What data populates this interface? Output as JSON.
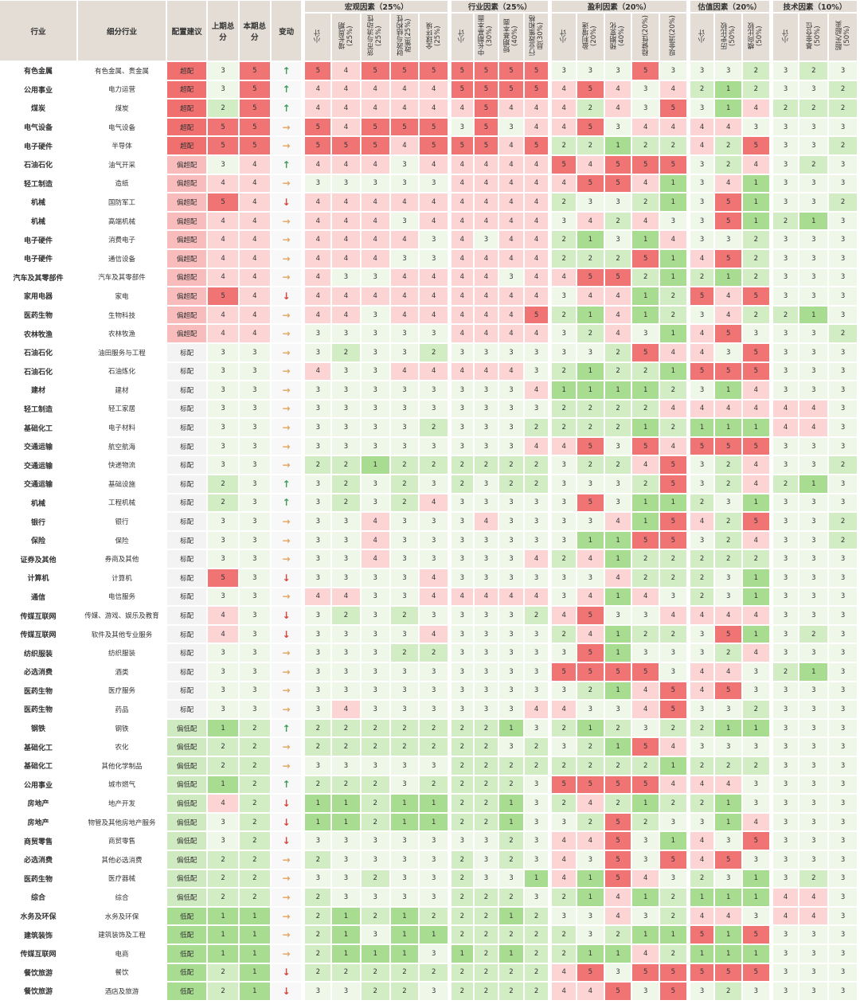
{
  "header": {
    "fixed": [
      "行业",
      "细分行业",
      "配置建议",
      "上期总分",
      "本期总分",
      "变动"
    ],
    "groups": [
      {
        "title": "宏观因素（25%）",
        "columns": [
          "小计",
          "增长周期(25%)",
          "货币与流动性(25%)",
          "财政与结构性政策(25%)",
          "全球环境(25%)"
        ]
      },
      {
        "title": "行业因素（25%）",
        "columns": [
          "小计",
          "中长期基本面(30%)",
          "短期基本面(40%)",
          "行业政策和格局(30%)"
        ]
      },
      {
        "title": "盈利因素（20%）",
        "columns": [
          "小计",
          "盈利增速(20%)",
          "预期变化(40%)",
          "稳健性(20%)",
          "现金流(20%)"
        ]
      },
      {
        "title": "估值因素（20%）",
        "columns": [
          "小计",
          "历史比较(50%)",
          "横向比较(50%)"
        ]
      },
      {
        "title": "技术因素（10%）",
        "columns": [
          "小计",
          "基金仓位(50%)",
          "超买/超卖(50%)"
        ]
      }
    ]
  },
  "rows": [
    [
      "有色金属",
      "有色金属、贵金属",
      "超配",
      3,
      5,
      "↑",
      5,
      4,
      5,
      5,
      5,
      5,
      5,
      5,
      5,
      3,
      3,
      3,
      5,
      3,
      3,
      3,
      2,
      3,
      2,
      3
    ],
    [
      "公用事业",
      "电力运营",
      "超配",
      3,
      5,
      "↑",
      4,
      4,
      4,
      4,
      4,
      5,
      5,
      5,
      5,
      4,
      5,
      4,
      3,
      4,
      2,
      1,
      2,
      3,
      3,
      2
    ],
    [
      "煤炭",
      "煤炭",
      "超配",
      2,
      5,
      "↑",
      4,
      4,
      4,
      4,
      4,
      4,
      5,
      4,
      4,
      4,
      2,
      4,
      3,
      5,
      3,
      1,
      4,
      2,
      2,
      2
    ],
    [
      "电气设备",
      "电气设备",
      "超配",
      5,
      5,
      "→",
      5,
      4,
      5,
      5,
      5,
      3,
      5,
      3,
      4,
      4,
      5,
      3,
      4,
      4,
      4,
      4,
      3,
      3,
      3,
      3
    ],
    [
      "电子硬件",
      "半导体",
      "超配",
      5,
      5,
      "→",
      5,
      5,
      5,
      4,
      5,
      5,
      5,
      4,
      5,
      2,
      2,
      1,
      2,
      2,
      4,
      2,
      5,
      3,
      3,
      2
    ],
    [
      "石油石化",
      "油气开采",
      "偏超配",
      3,
      4,
      "↑",
      4,
      4,
      4,
      3,
      4,
      4,
      4,
      4,
      4,
      5,
      4,
      5,
      5,
      5,
      3,
      2,
      4,
      3,
      2,
      3
    ],
    [
      "轻工制造",
      "造纸",
      "偏超配",
      4,
      4,
      "→",
      3,
      3,
      3,
      3,
      3,
      4,
      4,
      4,
      4,
      4,
      5,
      5,
      4,
      1,
      3,
      4,
      1,
      3,
      3,
      3
    ],
    [
      "机械",
      "国防军工",
      "偏超配",
      5,
      4,
      "↓",
      4,
      4,
      4,
      4,
      4,
      4,
      4,
      4,
      4,
      2,
      3,
      3,
      2,
      1,
      3,
      5,
      1,
      3,
      3,
      2
    ],
    [
      "机械",
      "高端机械",
      "偏超配",
      4,
      4,
      "→",
      4,
      4,
      4,
      3,
      4,
      4,
      4,
      4,
      4,
      3,
      4,
      2,
      4,
      3,
      3,
      5,
      1,
      2,
      1,
      3
    ],
    [
      "电子硬件",
      "消费电子",
      "偏超配",
      4,
      4,
      "→",
      4,
      4,
      4,
      4,
      3,
      4,
      3,
      4,
      4,
      2,
      1,
      3,
      1,
      4,
      3,
      3,
      2,
      3,
      3,
      3
    ],
    [
      "电子硬件",
      "通信设备",
      "偏超配",
      4,
      4,
      "→",
      4,
      4,
      4,
      3,
      3,
      4,
      4,
      4,
      4,
      2,
      2,
      2,
      5,
      1,
      4,
      5,
      2,
      3,
      3,
      3
    ],
    [
      "汽车及其零部件",
      "汽车及其零部件",
      "偏超配",
      4,
      4,
      "→",
      4,
      3,
      3,
      4,
      4,
      4,
      4,
      3,
      4,
      4,
      5,
      5,
      2,
      1,
      2,
      1,
      2,
      3,
      3,
      3
    ],
    [
      "家用电器",
      "家电",
      "偏超配",
      5,
      4,
      "↓",
      4,
      4,
      4,
      4,
      4,
      4,
      4,
      4,
      4,
      3,
      4,
      4,
      1,
      2,
      5,
      4,
      5,
      3,
      3,
      3
    ],
    [
      "医药生物",
      "生物科技",
      "偏超配",
      4,
      4,
      "→",
      4,
      4,
      3,
      4,
      4,
      4,
      4,
      4,
      5,
      2,
      1,
      4,
      1,
      2,
      3,
      4,
      2,
      2,
      1,
      3
    ],
    [
      "农林牧渔",
      "农林牧渔",
      "偏超配",
      4,
      4,
      "→",
      3,
      3,
      3,
      3,
      3,
      4,
      4,
      4,
      4,
      3,
      2,
      4,
      3,
      1,
      4,
      5,
      3,
      3,
      3,
      2
    ],
    [
      "石油石化",
      "油田服务与工程",
      "标配",
      3,
      3,
      "→",
      3,
      2,
      3,
      3,
      2,
      3,
      3,
      3,
      3,
      3,
      3,
      2,
      5,
      4,
      4,
      3,
      5,
      3,
      3,
      3
    ],
    [
      "石油石化",
      "石油炼化",
      "标配",
      3,
      3,
      "→",
      4,
      3,
      3,
      4,
      4,
      4,
      4,
      4,
      3,
      2,
      1,
      2,
      2,
      1,
      5,
      5,
      5,
      3,
      3,
      3
    ],
    [
      "建材",
      "建材",
      "标配",
      3,
      3,
      "→",
      3,
      3,
      3,
      3,
      3,
      3,
      3,
      3,
      4,
      1,
      1,
      1,
      1,
      2,
      3,
      1,
      4,
      3,
      3,
      3
    ],
    [
      "轻工制造",
      "轻工家居",
      "标配",
      3,
      3,
      "→",
      3,
      3,
      3,
      3,
      3,
      3,
      3,
      3,
      3,
      2,
      2,
      2,
      2,
      4,
      4,
      4,
      4,
      4,
      4,
      3
    ],
    [
      "基础化工",
      "电子材料",
      "标配",
      3,
      3,
      "→",
      3,
      3,
      3,
      3,
      2,
      3,
      3,
      3,
      2,
      2,
      2,
      2,
      1,
      2,
      1,
      1,
      1,
      4,
      4,
      3
    ],
    [
      "交通运输",
      "航空航海",
      "标配",
      3,
      3,
      "→",
      3,
      3,
      3,
      3,
      3,
      3,
      3,
      3,
      4,
      4,
      5,
      3,
      5,
      4,
      5,
      5,
      5,
      3,
      3,
      3
    ],
    [
      "交通运输",
      "快递物流",
      "标配",
      3,
      3,
      "→",
      2,
      2,
      1,
      2,
      2,
      2,
      2,
      2,
      2,
      3,
      2,
      2,
      4,
      5,
      3,
      2,
      4,
      3,
      3,
      2
    ],
    [
      "交通运输",
      "基础设施",
      "标配",
      2,
      3,
      "↑",
      3,
      2,
      3,
      2,
      3,
      2,
      3,
      2,
      2,
      3,
      3,
      3,
      2,
      5,
      3,
      2,
      4,
      2,
      1,
      3
    ],
    [
      "机械",
      "工程机械",
      "标配",
      2,
      3,
      "↑",
      3,
      2,
      3,
      2,
      4,
      3,
      3,
      3,
      3,
      3,
      5,
      3,
      1,
      1,
      2,
      3,
      1,
      3,
      3,
      3
    ],
    [
      "银行",
      "银行",
      "标配",
      3,
      3,
      "→",
      3,
      3,
      4,
      3,
      3,
      3,
      4,
      3,
      3,
      3,
      3,
      4,
      1,
      5,
      4,
      2,
      5,
      3,
      3,
      2
    ],
    [
      "保险",
      "保险",
      "标配",
      3,
      3,
      "→",
      3,
      3,
      4,
      3,
      3,
      3,
      3,
      3,
      3,
      3,
      1,
      1,
      5,
      5,
      3,
      2,
      4,
      3,
      3,
      2
    ],
    [
      "证券及其他",
      "券商及其他",
      "标配",
      3,
      3,
      "→",
      3,
      3,
      4,
      3,
      3,
      3,
      3,
      3,
      4,
      2,
      4,
      1,
      2,
      2,
      2,
      2,
      2,
      3,
      3,
      3
    ],
    [
      "计算机",
      "计算机",
      "标配",
      5,
      3,
      "↓",
      3,
      3,
      3,
      3,
      4,
      3,
      3,
      3,
      3,
      3,
      3,
      4,
      2,
      2,
      2,
      3,
      1,
      3,
      3,
      3
    ],
    [
      "通信",
      "电信服务",
      "标配",
      3,
      3,
      "→",
      4,
      4,
      3,
      3,
      4,
      4,
      4,
      4,
      4,
      3,
      4,
      1,
      4,
      3,
      2,
      3,
      1,
      3,
      3,
      3
    ],
    [
      "传媒互联网",
      "传媒、游戏、娱乐及教育",
      "标配",
      4,
      3,
      "↓",
      3,
      2,
      3,
      2,
      3,
      3,
      3,
      3,
      2,
      4,
      5,
      3,
      3,
      4,
      4,
      4,
      4,
      3,
      3,
      3
    ],
    [
      "传媒互联网",
      "软件及其他专业服务",
      "标配",
      4,
      3,
      "↓",
      3,
      3,
      3,
      3,
      4,
      3,
      3,
      3,
      3,
      2,
      4,
      1,
      2,
      2,
      3,
      5,
      1,
      3,
      2,
      3
    ],
    [
      "纺织服装",
      "纺织服装",
      "标配",
      3,
      3,
      "→",
      3,
      3,
      3,
      2,
      2,
      3,
      3,
      3,
      3,
      3,
      5,
      1,
      3,
      3,
      3,
      2,
      4,
      3,
      3,
      3
    ],
    [
      "必选消费",
      "酒类",
      "标配",
      3,
      3,
      "→",
      3,
      3,
      3,
      3,
      3,
      3,
      3,
      3,
      3,
      5,
      5,
      5,
      5,
      3,
      4,
      4,
      3,
      2,
      1,
      3
    ],
    [
      "医药生物",
      "医疗服务",
      "标配",
      3,
      3,
      "→",
      3,
      3,
      3,
      3,
      3,
      3,
      3,
      3,
      3,
      3,
      2,
      1,
      4,
      5,
      4,
      5,
      3,
      3,
      3,
      3
    ],
    [
      "医药生物",
      "药品",
      "标配",
      3,
      3,
      "→",
      3,
      4,
      3,
      3,
      3,
      3,
      3,
      3,
      4,
      4,
      3,
      3,
      4,
      5,
      3,
      3,
      2,
      3,
      3,
      3
    ],
    [
      "钢铁",
      "钢铁",
      "偏低配",
      1,
      2,
      "↑",
      2,
      2,
      2,
      2,
      2,
      2,
      2,
      1,
      3,
      2,
      1,
      2,
      3,
      2,
      2,
      1,
      1,
      3,
      3,
      3
    ],
    [
      "基础化工",
      "农化",
      "偏低配",
      2,
      2,
      "→",
      2,
      2,
      2,
      2,
      2,
      2,
      2,
      3,
      2,
      3,
      2,
      1,
      5,
      4,
      3,
      3,
      3,
      3,
      3,
      3
    ],
    [
      "基础化工",
      "其他化学制品",
      "偏低配",
      2,
      2,
      "→",
      3,
      3,
      3,
      3,
      3,
      2,
      2,
      2,
      2,
      2,
      2,
      2,
      2,
      1,
      2,
      2,
      2,
      3,
      3,
      3
    ],
    [
      "公用事业",
      "城市燃气",
      "偏低配",
      1,
      2,
      "↑",
      2,
      2,
      2,
      3,
      2,
      2,
      2,
      2,
      3,
      5,
      5,
      5,
      5,
      4,
      4,
      4,
      3,
      3,
      3,
      3
    ],
    [
      "房地产",
      "地产开发",
      "偏低配",
      4,
      2,
      "↓",
      1,
      1,
      2,
      1,
      1,
      2,
      2,
      1,
      3,
      2,
      4,
      2,
      1,
      2,
      2,
      1,
      3,
      3,
      3,
      3
    ],
    [
      "房地产",
      "物管及其他房地产服务",
      "偏低配",
      3,
      2,
      "↓",
      1,
      1,
      2,
      1,
      1,
      2,
      2,
      1,
      3,
      3,
      2,
      5,
      2,
      3,
      3,
      1,
      4,
      3,
      3,
      3
    ],
    [
      "商贸零售",
      "商贸零售",
      "偏低配",
      3,
      2,
      "↓",
      3,
      3,
      3,
      3,
      3,
      3,
      3,
      2,
      3,
      4,
      4,
      5,
      3,
      1,
      4,
      3,
      5,
      3,
      3,
      3
    ],
    [
      "必选消费",
      "其他必选消费",
      "偏低配",
      2,
      2,
      "→",
      2,
      3,
      3,
      3,
      3,
      2,
      3,
      2,
      3,
      4,
      3,
      5,
      3,
      5,
      4,
      5,
      3,
      3,
      3,
      3
    ],
    [
      "医药生物",
      "医疗器械",
      "偏低配",
      2,
      2,
      "→",
      3,
      3,
      2,
      3,
      3,
      2,
      3,
      3,
      1,
      4,
      1,
      5,
      4,
      3,
      2,
      3,
      1,
      3,
      2,
      3
    ],
    [
      "综合",
      "综合",
      "偏低配",
      2,
      2,
      "→",
      2,
      3,
      3,
      3,
      3,
      2,
      2,
      2,
      3,
      2,
      1,
      4,
      1,
      2,
      1,
      1,
      1,
      4,
      4,
      3
    ],
    [
      "水务及环保",
      "水务及环保",
      "低配",
      1,
      1,
      "→",
      2,
      1,
      2,
      1,
      2,
      2,
      2,
      1,
      2,
      3,
      3,
      4,
      3,
      2,
      4,
      4,
      3,
      4,
      4,
      3
    ],
    [
      "建筑装饰",
      "建筑装饰及工程",
      "低配",
      1,
      1,
      "→",
      2,
      1,
      3,
      1,
      1,
      2,
      2,
      2,
      2,
      2,
      3,
      2,
      1,
      1,
      5,
      1,
      5,
      3,
      3,
      3
    ],
    [
      "传媒互联网",
      "电商",
      "低配",
      1,
      1,
      "→",
      2,
      1,
      1,
      1,
      3,
      1,
      2,
      1,
      2,
      2,
      1,
      1,
      4,
      2,
      1,
      1,
      1,
      3,
      3,
      3
    ],
    [
      "餐饮旅游",
      "餐饮",
      "低配",
      2,
      1,
      "↓",
      2,
      2,
      2,
      2,
      2,
      2,
      2,
      2,
      2,
      4,
      5,
      3,
      5,
      5,
      5,
      5,
      5,
      3,
      3,
      3
    ],
    [
      "餐饮旅游",
      "酒店及旅游",
      "低配",
      2,
      1,
      "↓",
      3,
      3,
      2,
      2,
      3,
      2,
      2,
      2,
      2,
      4,
      4,
      5,
      3,
      5,
      3,
      2,
      3,
      3,
      3,
      3
    ]
  ]
}
